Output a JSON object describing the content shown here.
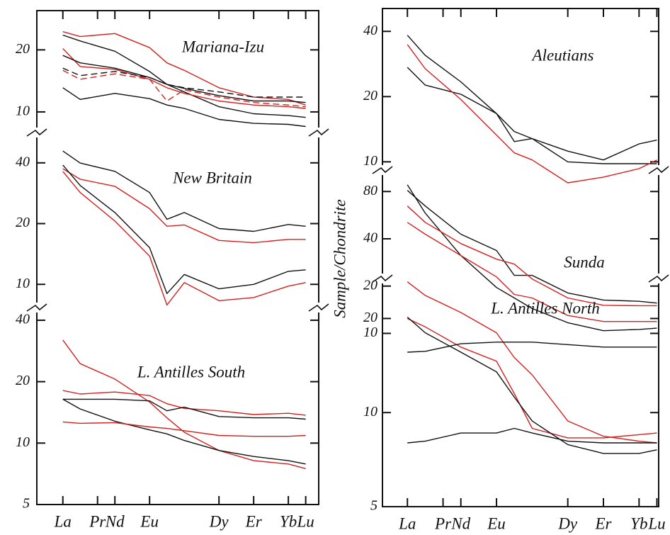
{
  "chart_data": [
    {
      "type": "line",
      "title": "Mariana-Izu",
      "log_scale": true,
      "x": [
        0,
        1,
        3,
        5,
        6,
        7,
        9,
        11,
        13,
        14
      ],
      "xlim": [
        -1.5,
        14.75
      ],
      "ylim": [
        8.2,
        31
      ],
      "yticks": [
        10,
        20
      ],
      "series": [
        {
          "color": "#d42020",
          "values": [
            24.5,
            23.2,
            24,
            20.5,
            17.3,
            15.9,
            13.1,
            11.8,
            11.5,
            10.8
          ]
        },
        {
          "color": "#111111",
          "values": [
            23.6,
            22.1,
            19.7,
            15.7,
            13.6,
            12.5,
            10.6,
            9.8,
            9.6,
            9.4
          ]
        },
        {
          "color": "#d42020",
          "values": [
            20.3,
            16.6,
            16.1,
            14.4,
            13.1,
            12.3,
            11.3,
            10.8,
            10.6,
            10.4
          ]
        },
        {
          "color": "#111111",
          "values": [
            18.8,
            17.3,
            16.3,
            14.7,
            13.6,
            13,
            12,
            11.3,
            11.3,
            11.1
          ]
        },
        {
          "color": "#111111",
          "dashed": true,
          "values": [
            16.3,
            15,
            15.7,
            14.7,
            13.6,
            13.1,
            12.5,
            11.8,
            11.8,
            11.8
          ]
        },
        {
          "color": "#d42020",
          "dashed": true,
          "values": [
            15.9,
            14.4,
            15.3,
            14.4,
            11.3,
            12.8,
            11.8,
            11.1,
            10.8,
            10.6
          ]
        },
        {
          "color": "#111111",
          "values": [
            13.1,
            11.5,
            12.3,
            11.6,
            10.8,
            10.4,
            9.2,
            8.8,
            8.7,
            8.5
          ]
        }
      ]
    },
    {
      "type": "line",
      "title": "New Britain",
      "log_scale": true,
      "x": [
        0,
        1,
        3,
        5,
        6,
        7,
        9,
        11,
        13,
        14
      ],
      "xlim": [
        -1.5,
        14.75
      ],
      "ylim": [
        7.8,
        53
      ],
      "yticks": [
        10,
        20,
        40
      ],
      "series": [
        {
          "color": "#111111",
          "values": [
            45.8,
            39.9,
            36.3,
            28.5,
            21,
            22.7,
            18.9,
            18.3,
            19.8,
            19.4
          ]
        },
        {
          "color": "#d42020",
          "values": [
            37.4,
            33.2,
            30.6,
            23.7,
            19.4,
            19.7,
            16.5,
            16.1,
            16.7,
            16.7
          ]
        },
        {
          "color": "#111111",
          "values": [
            39,
            30.9,
            22.7,
            15.2,
            9,
            11.2,
            9.5,
            10,
            11.6,
            11.8
          ]
        },
        {
          "color": "#d42020",
          "values": [
            36.3,
            28.5,
            20.6,
            13.8,
            7.9,
            10.2,
            8.3,
            8.6,
            9.8,
            10.2
          ]
        }
      ]
    },
    {
      "type": "line",
      "title": "L. Antilles South",
      "log_scale": true,
      "x": [
        0,
        1,
        3,
        5,
        6,
        7,
        9,
        11,
        13,
        14
      ],
      "xlim": [
        -1.5,
        14.75
      ],
      "ylim": [
        5,
        44
      ],
      "yticks": [
        5,
        10,
        20,
        40
      ],
      "xticks": [
        {
          "value": 0,
          "label": "La"
        },
        {
          "value": 2,
          "label": "Pr"
        },
        {
          "value": 3,
          "label": "Nd"
        },
        {
          "value": 5,
          "label": "Eu"
        },
        {
          "value": 9,
          "label": "Dy"
        },
        {
          "value": 11,
          "label": "Er"
        },
        {
          "value": 13,
          "label": "Yb"
        },
        {
          "value": 14,
          "label": "Lu"
        }
      ],
      "series": [
        {
          "color": "#d42020",
          "values": [
            32,
            24.5,
            20.6,
            15.9,
            13.3,
            11.3,
            9.2,
            8.2,
            7.9,
            7.5
          ]
        },
        {
          "color": "#d42020",
          "values": [
            18.1,
            17.4,
            17.8,
            17.1,
            15.6,
            14.8,
            14.4,
            13.8,
            14,
            13.7
          ]
        },
        {
          "color": "#111111",
          "values": [
            16.4,
            16.4,
            16.4,
            16.1,
            14.4,
            15,
            13.5,
            13.3,
            13.3,
            13.1
          ]
        },
        {
          "color": "#111111",
          "values": [
            16.4,
            14.7,
            12.8,
            11.6,
            11.1,
            10.3,
            9.2,
            8.6,
            8.2,
            7.9
          ]
        },
        {
          "color": "#d42020",
          "values": [
            12.7,
            12.5,
            12.6,
            12,
            11.8,
            11.5,
            10.9,
            10.8,
            10.8,
            10.9
          ]
        }
      ]
    },
    {
      "type": "line",
      "title": "Aleutians",
      "log_scale": true,
      "x": [
        0,
        1,
        3,
        5,
        6,
        7,
        9,
        11,
        13,
        14
      ],
      "xlim": [
        -1.4,
        14.1
      ],
      "ylim": [
        8,
        51
      ],
      "yticks": [
        10,
        20,
        40
      ],
      "series": [
        {
          "color": "#111111",
          "values": [
            38.4,
            31,
            23.4,
            16.7,
            12.4,
            12.8,
            11.2,
            10.2,
            12.1,
            12.6
          ]
        },
        {
          "color": "#111111",
          "values": [
            27.3,
            22.6,
            20.5,
            16.7,
            13.8,
            12.8,
            10,
            9.8,
            9.8,
            9.8
          ]
        },
        {
          "color": "#d42020",
          "values": [
            34.8,
            26.9,
            19.4,
            13.3,
            11,
            10.2,
            8,
            8.5,
            9.3,
            10.2
          ]
        }
      ]
    },
    {
      "type": "line",
      "title": "Sunda",
      "ylabel": "Sample/Chondrite",
      "log_scale": true,
      "x": [
        0,
        1,
        3,
        5,
        6,
        7,
        9,
        11,
        13,
        14
      ],
      "xlim": [
        -1.4,
        14.1
      ],
      "ylim": [
        8.6,
        104
      ],
      "yticks": [
        10,
        20,
        40,
        80
      ],
      "series": [
        {
          "color": "#111111",
          "values": [
            88.3,
            58.3,
            31.3,
            19.6,
            16.8,
            14.4,
            11.7,
            10.4,
            10.6,
            10.8
          ]
        },
        {
          "color": "#111111",
          "values": [
            81.3,
            64.7,
            42.8,
            33.7,
            23.4,
            23.4,
            18.1,
            16.3,
            16,
            15.6
          ]
        },
        {
          "color": "#d42020",
          "values": [
            64.7,
            50.9,
            37.3,
            29.7,
            27.6,
            22.2,
            16.8,
            15.1,
            15,
            15
          ]
        },
        {
          "color": "#d42020",
          "values": [
            50.9,
            42.8,
            31.3,
            22.9,
            17.7,
            16.8,
            13,
            11.9,
            11.9,
            11.9
          ]
        }
      ]
    },
    {
      "type": "line",
      "title": "L. Antilles North",
      "log_scale": true,
      "x": [
        0,
        1,
        3,
        5,
        6,
        7,
        9,
        11,
        13,
        14
      ],
      "xlim": [
        -1.4,
        14.1
      ],
      "ylim": [
        5,
        28
      ],
      "yticks": [
        5,
        10,
        20
      ],
      "xticks": [
        {
          "value": 0,
          "label": "La"
        },
        {
          "value": 2,
          "label": "Pr"
        },
        {
          "value": 3,
          "label": "Nd"
        },
        {
          "value": 5,
          "label": "Eu"
        },
        {
          "value": 9,
          "label": "Dy"
        },
        {
          "value": 11,
          "label": "Er"
        },
        {
          "value": 13,
          "label": "Yb"
        },
        {
          "value": 14,
          "label": "Lu"
        }
      ],
      "series": [
        {
          "color": "#d42020",
          "values": [
            26.2,
            23.7,
            20.9,
            18,
            15,
            13.2,
            9.4,
            8.4,
            8.1,
            8
          ]
        },
        {
          "color": "#d42020",
          "values": [
            20,
            18.8,
            16.2,
            14.6,
            11.5,
            8.9,
            8.3,
            8.3,
            8.5,
            8.6
          ]
        },
        {
          "color": "#111111",
          "values": [
            15.6,
            15.7,
            16.6,
            16.8,
            16.8,
            16.8,
            16.5,
            16.2,
            16.2,
            16.2
          ]
        },
        {
          "color": "#111111",
          "values": [
            20.2,
            18,
            15.6,
            13.5,
            11.2,
            9.4,
            7.9,
            7.4,
            7.4,
            7.6
          ]
        },
        {
          "color": "#111111",
          "values": [
            8,
            8.1,
            8.6,
            8.6,
            8.9,
            8.6,
            8.1,
            8,
            8,
            8
          ]
        }
      ]
    }
  ]
}
